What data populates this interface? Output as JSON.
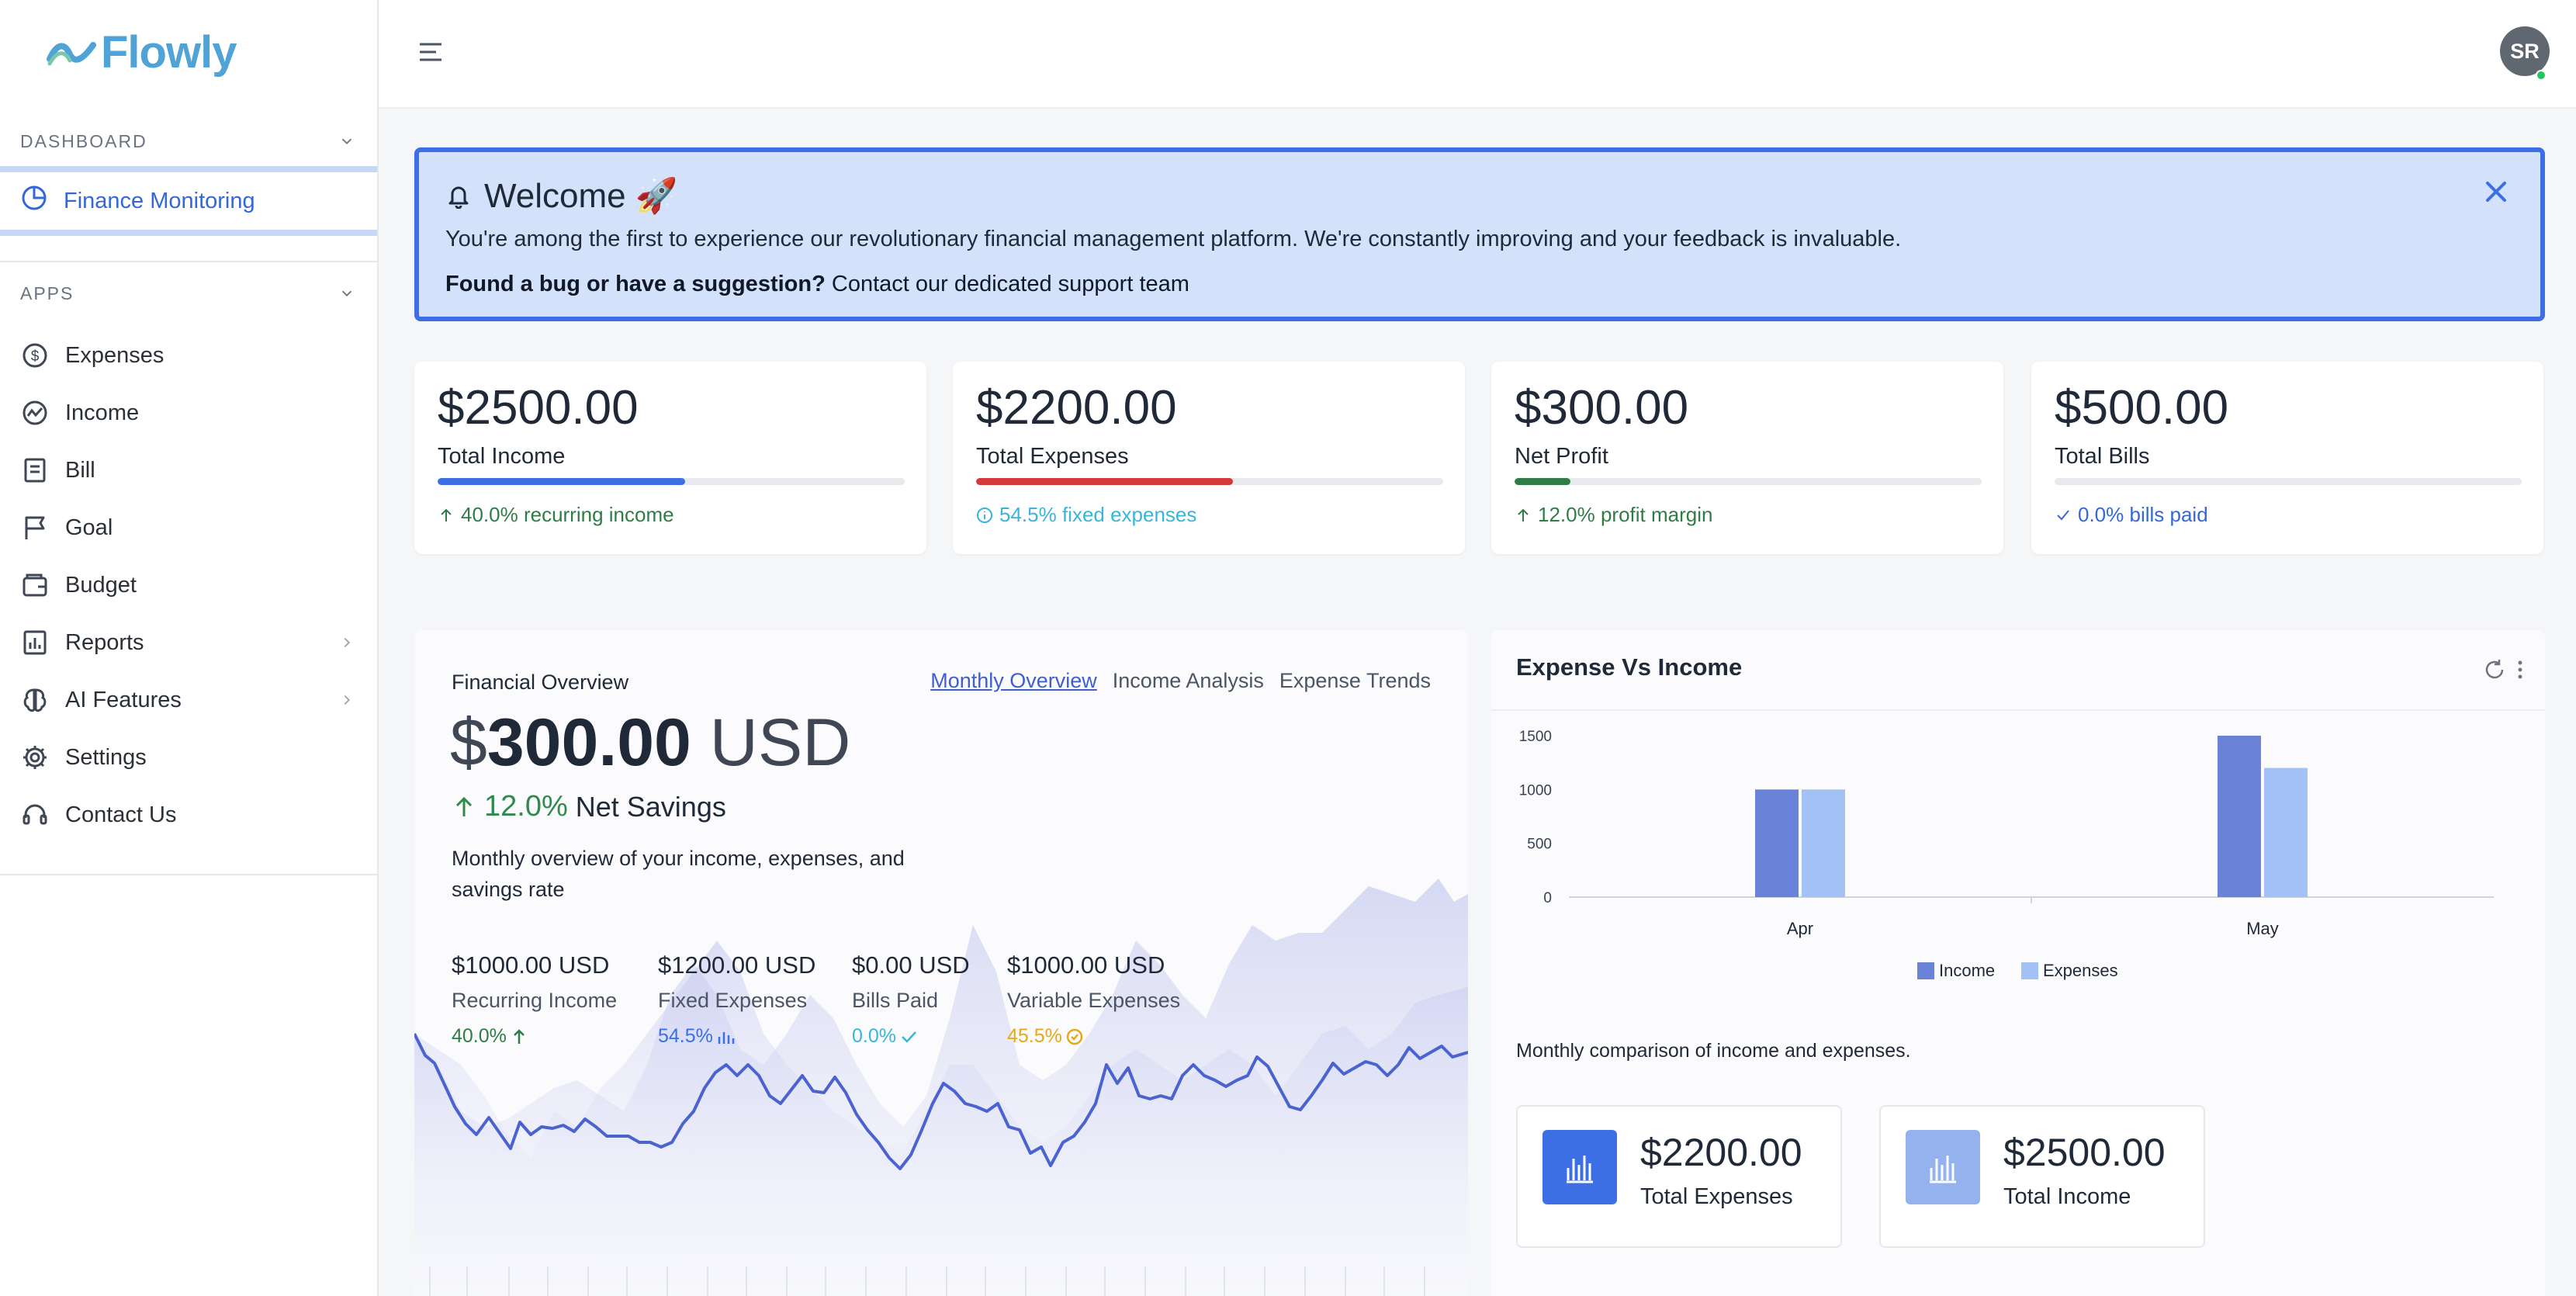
{
  "app": {
    "name": "Flowly"
  },
  "sidebar": {
    "dashboard_heading": "DASHBOARD",
    "active_item": "Finance Monitoring",
    "apps_heading": "APPS",
    "items": [
      {
        "label": "Expenses",
        "icon": "dollar-circle-icon"
      },
      {
        "label": "Income",
        "icon": "trend-circle-icon"
      },
      {
        "label": "Bill",
        "icon": "receipt-icon"
      },
      {
        "label": "Goal",
        "icon": "flag-icon"
      },
      {
        "label": "Budget",
        "icon": "wallet-icon"
      },
      {
        "label": "Reports",
        "icon": "report-chart-icon",
        "has_submenu": true
      },
      {
        "label": "AI Features",
        "icon": "brain-icon",
        "has_submenu": true
      },
      {
        "label": "Settings",
        "icon": "gear-icon"
      },
      {
        "label": "Contact Us",
        "icon": "headset-icon"
      }
    ]
  },
  "topbar": {
    "avatar_initials": "SR",
    "avatar_status": "online"
  },
  "banner": {
    "title": "Welcome 🚀",
    "text": "You're among the first to experience our revolutionary financial management platform. We're constantly improving and your feedback is invaluable.",
    "cta_bold": "Found a bug or have a suggestion?",
    "cta_link": "Contact our dedicated support team"
  },
  "stats": [
    {
      "value": "$2500.00",
      "label": "Total Income",
      "progress": 0.53,
      "color": "#3b6fe3",
      "note": "40.0% recurring income",
      "note_color": "#2f7d46",
      "note_icon": "arrow-up-icon"
    },
    {
      "value": "$2200.00",
      "label": "Total Expenses",
      "progress": 0.55,
      "color": "#d23a3a",
      "note": "54.5% fixed expenses",
      "note_color": "#38b6d8",
      "note_icon": "info-circle-icon"
    },
    {
      "value": "$300.00",
      "label": "Net Profit",
      "progress": 0.12,
      "color": "#2f7d46",
      "note": "12.0% profit margin",
      "note_color": "#2f7d46",
      "note_icon": "arrow-up-icon"
    },
    {
      "value": "$500.00",
      "label": "Total Bills",
      "progress": 0.0,
      "color": "#3b6fe3",
      "note": "0.0% bills paid",
      "note_color": "#3567d8",
      "note_icon": "check-icon"
    }
  ],
  "overview": {
    "kicker": "Financial Overview",
    "tabs": [
      "Monthly Overview",
      "Income Analysis",
      "Expense Trends"
    ],
    "active_tab": "Monthly Overview",
    "currency_symbol": "$",
    "amount": "300.00",
    "unit": "USD",
    "change_pct": "12.0%",
    "change_label": "Net Savings",
    "description": "Monthly overview of your income, expenses, and savings rate",
    "metrics": [
      {
        "value": "$1000.00 USD",
        "label": "Recurring Income",
        "pct": "40.0%",
        "color": "#2f7d46",
        "icon": "arrow-up-icon"
      },
      {
        "value": "$1200.00 USD",
        "label": "Fixed Expenses",
        "pct": "54.5%",
        "color": "#3b6fe3",
        "icon": "bar-chart-icon"
      },
      {
        "value": "$0.00 USD",
        "label": "Bills Paid",
        "pct": "0.0%",
        "color": "#38b6d8",
        "icon": "check-icon"
      },
      {
        "value": "$1000.00 USD",
        "label": "Variable Expenses",
        "pct": "45.5%",
        "color": "#e6a817",
        "icon": "check-circle-icon"
      }
    ]
  },
  "expense_vs_income": {
    "title": "Expense Vs Income",
    "caption": "Monthly comparison of income and expenses.",
    "totals": [
      {
        "value": "$2200.00",
        "label": "Total Expenses",
        "icon_bg": "#3b6fe3"
      },
      {
        "value": "$2500.00",
        "label": "Total Income",
        "icon_bg": "#93b2ee"
      }
    ]
  },
  "chart_data": {
    "type": "bar",
    "categories": [
      "Apr",
      "May"
    ],
    "series": [
      {
        "name": "Income",
        "values": [
          1000,
          1500
        ],
        "color": "#6a82d8"
      },
      {
        "name": "Expenses",
        "values": [
          1000,
          1200
        ],
        "color": "#a3c1f4"
      }
    ],
    "title": "",
    "xlabel": "",
    "ylabel": "",
    "ylim": [
      0,
      1500
    ],
    "yticks": [
      0,
      500,
      1000,
      1500
    ],
    "legend": "bottom-center",
    "grid": false
  }
}
